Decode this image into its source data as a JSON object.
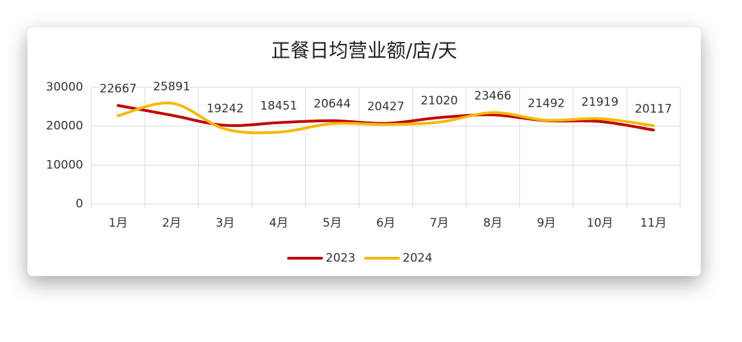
{
  "chart_data": {
    "type": "line",
    "title": "正餐日均营业额/店/天",
    "categories": [
      "1月",
      "2月",
      "3月",
      "4月",
      "5月",
      "6月",
      "7月",
      "8月",
      "9月",
      "10月",
      "11月"
    ],
    "series": [
      {
        "name": "2023",
        "color": "#c00000",
        "values": [
          25300,
          22800,
          20200,
          20900,
          21400,
          20700,
          22200,
          22900,
          21400,
          21200,
          19000
        ]
      },
      {
        "name": "2024",
        "color": "#f5b800",
        "values": [
          22667,
          25891,
          19242,
          18451,
          20644,
          20427,
          21020,
          23466,
          21492,
          21919,
          20117
        ]
      }
    ],
    "data_labels_series": 1,
    "ylim": [
      0,
      30000
    ],
    "yticks": [
      0,
      10000,
      20000,
      30000
    ],
    "grid": true,
    "legend": "bottom"
  }
}
